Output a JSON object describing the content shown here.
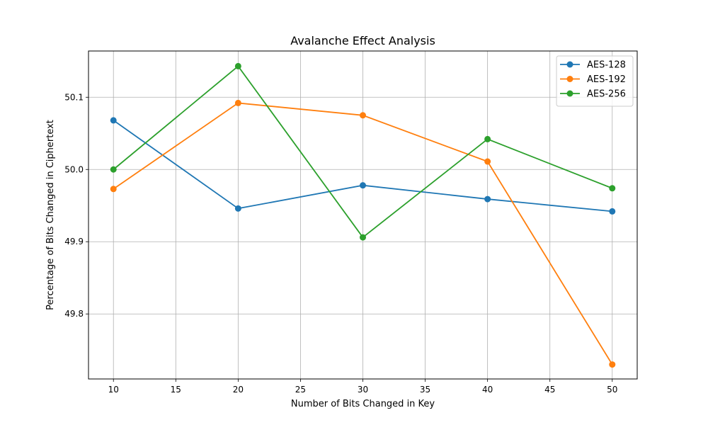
{
  "chart_data": {
    "type": "line",
    "title": "Avalanche Effect Analysis",
    "xlabel": "Number of Bits Changed in Key",
    "ylabel": "Percentage of Bits Changed in Ciphertext",
    "x": [
      10,
      20,
      30,
      40,
      50
    ],
    "xlim": [
      8,
      52
    ],
    "ylim": [
      49.71,
      50.164
    ],
    "xticks": [
      10,
      15,
      20,
      25,
      30,
      35,
      40,
      45,
      50
    ],
    "yticks": [
      49.8,
      49.9,
      50.0,
      50.1
    ],
    "ytick_labels": [
      "49.8",
      "49.9",
      "50.0",
      "50.1"
    ],
    "grid": true,
    "legend_position": "top-right",
    "series": [
      {
        "name": "AES-128",
        "color": "#1f77b4",
        "values": [
          50.068,
          49.946,
          49.978,
          49.959,
          49.942
        ]
      },
      {
        "name": "AES-192",
        "color": "#ff7f0e",
        "values": [
          49.973,
          50.092,
          50.075,
          50.011,
          49.73
        ]
      },
      {
        "name": "AES-256",
        "color": "#2ca02c",
        "values": [
          50.0,
          50.143,
          49.906,
          50.042,
          49.974
        ]
      }
    ]
  }
}
